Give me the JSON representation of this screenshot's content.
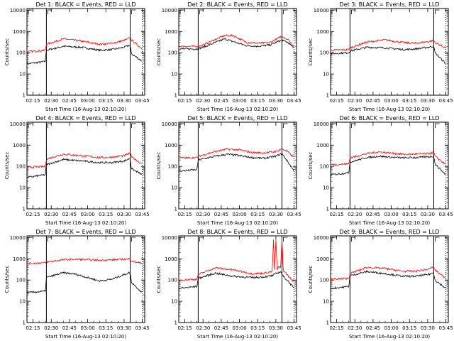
{
  "figure": {
    "xlabel": "Start Time (16-Aug-13 02:10:20)",
    "ylabel": "Counts/sec",
    "x_tick_labels": [
      "02:15",
      "02:30",
      "02:45",
      "03:00",
      "03:15",
      "03:30",
      "03:45"
    ],
    "y_tick_labels": [
      "1",
      "10",
      "100",
      "1000",
      "10000"
    ],
    "colors": {
      "events": "#000000",
      "lld": "#ff0000"
    }
  },
  "chart_data": [
    {
      "type": "line",
      "title": "Det 1: BLACK = Events, RED = LLD",
      "ylabel": "Counts/sec",
      "xlabel": "Start Time (16-Aug-13 02:10:20)",
      "y_scale": "log",
      "ylim": [
        1,
        12000
      ],
      "x_unit": "minutes after 02:10:20",
      "xlim": [
        0,
        97
      ],
      "events_lines_x": [
        16,
        85
      ],
      "dotted_line_x": [
        95
      ],
      "series": [
        {
          "name": "Events",
          "color": "#000000",
          "x": [
            0,
            15,
            16,
            30,
            45,
            60,
            70,
            80,
            85,
            86,
            95
          ],
          "values": [
            30,
            38,
            130,
            200,
            180,
            130,
            140,
            180,
            230,
            90,
            40
          ]
        },
        {
          "name": "LLD",
          "color": "#ff0000",
          "x": [
            0,
            15,
            16,
            30,
            45,
            60,
            70,
            80,
            85,
            86,
            95
          ],
          "values": [
            110,
            130,
            250,
            450,
            350,
            250,
            280,
            380,
            500,
            400,
            150
          ]
        }
      ]
    },
    {
      "type": "line",
      "title": "Det 2: BLACK = Events, RED = LLD",
      "ylabel": "Counts/sec",
      "xlabel": "Start Time (16-Aug-13 02:10:20)",
      "y_scale": "log",
      "ylim": [
        1,
        12000
      ],
      "x_unit": "minutes after 02:10:20",
      "xlim": [
        0,
        97
      ],
      "events_lines_x": [
        16,
        85
      ],
      "dotted_line_x": [
        95
      ],
      "series": [
        {
          "name": "Events",
          "color": "#000000",
          "x": [
            0,
            15,
            20,
            30,
            38,
            45,
            55,
            65,
            75,
            85,
            90,
            95
          ],
          "values": [
            150,
            150,
            180,
            300,
            450,
            330,
            220,
            200,
            230,
            400,
            300,
            160
          ]
        },
        {
          "name": "LLD",
          "color": "#ff0000",
          "x": [
            0,
            15,
            20,
            30,
            38,
            45,
            55,
            65,
            75,
            85,
            90,
            95
          ],
          "values": [
            200,
            200,
            230,
            420,
            650,
            640,
            320,
            280,
            300,
            600,
            420,
            200
          ]
        }
      ]
    },
    {
      "type": "line",
      "title": "Det 3: BLACK = Events, RED = LLD",
      "ylabel": "Counts/sec",
      "xlabel": "Start Time (16-Aug-13 02:10:20)",
      "y_scale": "log",
      "ylim": [
        1,
        12000
      ],
      "x_unit": "minutes after 02:10:20",
      "xlim": [
        0,
        97
      ],
      "events_lines_x": [
        16,
        85
      ],
      "dotted_line_x": [
        95
      ],
      "series": [
        {
          "name": "Events",
          "color": "#000000",
          "x": [
            0,
            15,
            16,
            30,
            45,
            60,
            70,
            80,
            85,
            86,
            95
          ],
          "values": [
            90,
            100,
            120,
            180,
            170,
            140,
            150,
            180,
            200,
            100,
            30
          ]
        },
        {
          "name": "LLD",
          "color": "#ff0000",
          "x": [
            0,
            15,
            16,
            30,
            45,
            60,
            70,
            80,
            85,
            86,
            95
          ],
          "values": [
            130,
            140,
            170,
            320,
            400,
            300,
            280,
            330,
            380,
            300,
            170
          ]
        }
      ]
    },
    {
      "type": "line",
      "title": "Det 4: BLACK = Events, RED = LLD",
      "ylabel": "Counts/sec",
      "xlabel": "Start Time (16-Aug-13 02:10:20)",
      "y_scale": "log",
      "ylim": [
        1,
        12000
      ],
      "x_unit": "minutes after 02:10:20",
      "xlim": [
        0,
        97
      ],
      "events_lines_x": [
        16,
        85
      ],
      "dotted_line_x": [
        95
      ],
      "series": [
        {
          "name": "Events",
          "color": "#000000",
          "x": [
            0,
            15,
            16,
            30,
            45,
            60,
            70,
            80,
            85,
            86,
            95
          ],
          "values": [
            30,
            40,
            120,
            210,
            180,
            150,
            150,
            180,
            240,
            80,
            40
          ]
        },
        {
          "name": "LLD",
          "color": "#ff0000",
          "x": [
            0,
            15,
            16,
            30,
            45,
            60,
            70,
            80,
            85,
            86,
            95
          ],
          "values": [
            90,
            100,
            220,
            380,
            320,
            260,
            270,
            320,
            420,
            300,
            120
          ]
        }
      ]
    },
    {
      "type": "line",
      "title": "Det 5: BLACK = Events, RED = LLD",
      "ylabel": "Counts/sec",
      "xlabel": "Start Time (16-Aug-13 02:10:20)",
      "y_scale": "log",
      "ylim": [
        1,
        12000
      ],
      "x_unit": "minutes after 02:10:20",
      "xlim": [
        0,
        97
      ],
      "events_lines_x": [
        16,
        85
      ],
      "dotted_line_x": [
        95
      ],
      "series": [
        {
          "name": "Events",
          "color": "#000000",
          "x": [
            0,
            15,
            16,
            30,
            40,
            50,
            60,
            70,
            80,
            85,
            90,
            95
          ],
          "values": [
            60,
            70,
            200,
            300,
            370,
            320,
            260,
            240,
            300,
            400,
            160,
            60
          ]
        },
        {
          "name": "LLD",
          "color": "#ff0000",
          "x": [
            0,
            15,
            16,
            30,
            40,
            50,
            60,
            70,
            80,
            85,
            90,
            95
          ],
          "values": [
            250,
            260,
            300,
            500,
            650,
            600,
            450,
            430,
            500,
            680,
            480,
            260
          ]
        }
      ]
    },
    {
      "type": "line",
      "title": "Det 6: BLACK = Events, RED = LLD",
      "ylabel": "Counts/sec",
      "xlabel": "Start Time (16-Aug-13 02:10:20)",
      "y_scale": "log",
      "ylim": [
        1,
        12000
      ],
      "x_unit": "minutes after 02:10:20",
      "xlim": [
        0,
        97
      ],
      "events_lines_x": [
        16,
        85
      ],
      "dotted_line_x": [
        95
      ],
      "series": [
        {
          "name": "Events",
          "color": "#000000",
          "x": [
            0,
            15,
            16,
            30,
            40,
            50,
            60,
            70,
            80,
            85,
            86,
            95
          ],
          "values": [
            40,
            50,
            160,
            260,
            300,
            270,
            250,
            260,
            280,
            300,
            130,
            40
          ]
        },
        {
          "name": "LLD",
          "color": "#ff0000",
          "x": [
            0,
            15,
            16,
            30,
            40,
            50,
            60,
            70,
            80,
            85,
            86,
            95
          ],
          "values": [
            120,
            130,
            250,
            400,
            480,
            420,
            370,
            380,
            400,
            460,
            300,
            120
          ]
        }
      ]
    },
    {
      "type": "line",
      "title": "Det 7: BLACK = Events, RED = LLD",
      "ylabel": "Counts/sec",
      "xlabel": "Start Time (16-Aug-13 02:10:20)",
      "y_scale": "log",
      "ylim": [
        1,
        12000
      ],
      "x_unit": "minutes after 02:10:20",
      "xlim": [
        0,
        97
      ],
      "events_lines_x": [
        16,
        85
      ],
      "dotted_line_x": [
        95
      ],
      "series": [
        {
          "name": "Events",
          "color": "#000000",
          "x": [
            0,
            15,
            16,
            30,
            40,
            50,
            60,
            70,
            80,
            85,
            86,
            95
          ],
          "values": [
            25,
            30,
            130,
            220,
            190,
            130,
            90,
            110,
            180,
            230,
            80,
            25
          ]
        },
        {
          "name": "LLD",
          "color": "#ff0000",
          "x": [
            0,
            15,
            16,
            30,
            40,
            50,
            60,
            70,
            80,
            85,
            86,
            95
          ],
          "values": [
            600,
            650,
            700,
            900,
            950,
            900,
            850,
            900,
            950,
            1000,
            800,
            600
          ]
        }
      ]
    },
    {
      "type": "line",
      "title": "Det 8: BLACK = Events, RED = LLD",
      "ylabel": "Counts/sec",
      "xlabel": "Start Time (16-Aug-13 02:10:20)",
      "y_scale": "log",
      "ylim": [
        1,
        12000
      ],
      "x_unit": "minutes after 02:10:20",
      "xlim": [
        0,
        97
      ],
      "events_lines_x": [
        16,
        85
      ],
      "dotted_line_x": [
        95
      ],
      "series": [
        {
          "name": "Events",
          "color": "#000000",
          "x": [
            0,
            15,
            16,
            30,
            45,
            60,
            70,
            77,
            80,
            84,
            86,
            90,
            95
          ],
          "values": [
            40,
            50,
            120,
            210,
            150,
            130,
            140,
            160,
            200,
            250,
            150,
            90,
            40
          ]
        },
        {
          "name": "LLD",
          "color": "#ff0000",
          "x": [
            0,
            15,
            16,
            30,
            45,
            60,
            70,
            77,
            78,
            79,
            80,
            81,
            82,
            84,
            85,
            86,
            87,
            90,
            95
          ],
          "values": [
            100,
            110,
            180,
            380,
            300,
            200,
            210,
            250,
            8000,
            250,
            8000,
            300,
            400,
            400,
            9000,
            300,
            250,
            160,
            80
          ]
        }
      ]
    },
    {
      "type": "line",
      "title": "Det 9: BLACK = Events, RED = LLD",
      "ylabel": "Counts/sec",
      "xlabel": "Start Time (16-Aug-13 02:10:20)",
      "y_scale": "log",
      "ylim": [
        1,
        12000
      ],
      "x_unit": "minutes after 02:10:20",
      "xlim": [
        0,
        97
      ],
      "events_lines_x": [
        16,
        85
      ],
      "dotted_line_x": [
        95
      ],
      "series": [
        {
          "name": "Events",
          "color": "#000000",
          "x": [
            0,
            15,
            16,
            30,
            45,
            60,
            70,
            80,
            85,
            86,
            95
          ],
          "values": [
            40,
            50,
            160,
            250,
            200,
            150,
            150,
            180,
            220,
            100,
            40
          ]
        },
        {
          "name": "LLD",
          "color": "#ff0000",
          "x": [
            0,
            15,
            16,
            30,
            45,
            60,
            70,
            80,
            85,
            86,
            95
          ],
          "values": [
            110,
            120,
            200,
            400,
            350,
            260,
            260,
            320,
            420,
            300,
            120
          ]
        }
      ]
    }
  ]
}
